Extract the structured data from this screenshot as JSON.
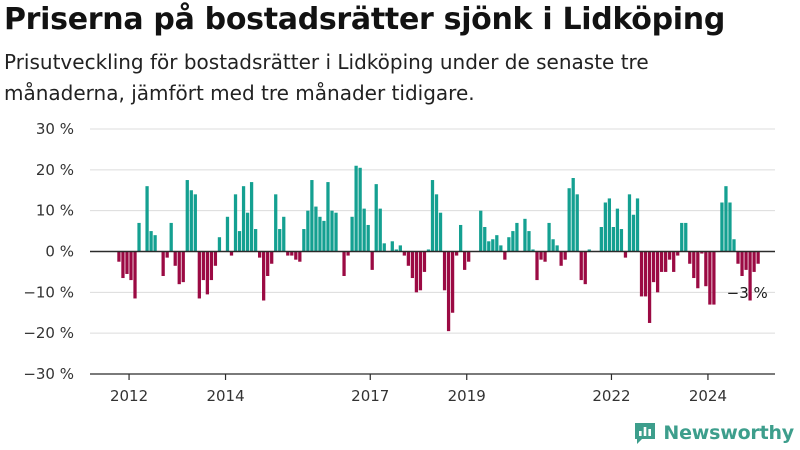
{
  "header": {
    "title": "Priserna på bostadsrätter sjönk i Lidköping",
    "subtitle": "Prisutveckling för bostadsrätter i Lidköping under de senaste tre månaderna, jämfört med tre månader tidigare."
  },
  "brand": {
    "name": "Newsworthy",
    "icon": "newsworthy-logo-icon",
    "color": "#3d9e8c"
  },
  "chart_data": {
    "type": "bar",
    "title": "",
    "xlabel": "",
    "ylabel": "",
    "ylim": [
      -30,
      30
    ],
    "yticks": [
      -30,
      -20,
      -10,
      0,
      10,
      20,
      30
    ],
    "ytick_labels": [
      "−30 %",
      "−20 %",
      "−10 %",
      "0 %",
      "10 %",
      "20 %",
      "30 %"
    ],
    "xticks": [
      {
        "label": "2012",
        "year": 2012.0
      },
      {
        "label": "2014",
        "year": 2014.0
      },
      {
        "label": "2017",
        "year": 2017.0
      },
      {
        "label": "2019",
        "year": 2019.0
      },
      {
        "label": "2022",
        "year": 2022.0
      },
      {
        "label": "2024",
        "year": 2024.0
      }
    ],
    "x_start": "2011-10",
    "frequency": "monthly",
    "grid": true,
    "legend": "none",
    "colors": {
      "positive": "#14a091",
      "negative": "#9b0a43"
    },
    "annotation": {
      "label": "−3 %",
      "value": -3
    },
    "values": [
      -2.5,
      -6.5,
      -5.5,
      -7,
      -11.5,
      7,
      0,
      16,
      5,
      4,
      0,
      -6,
      -1.5,
      7,
      -3.5,
      -8,
      -7.5,
      17.5,
      15,
      14,
      -11.5,
      -7,
      -10.5,
      -7,
      -3.5,
      3.5,
      0,
      8.5,
      -1,
      14,
      5,
      16,
      9.5,
      17,
      5.5,
      -1.5,
      -12,
      -6,
      -3,
      14,
      5.5,
      8.5,
      -1,
      -1,
      -2,
      -2.5,
      5.5,
      10,
      17.5,
      11,
      8.5,
      7.5,
      17,
      10,
      9.5,
      0,
      -6,
      -1,
      8.5,
      21,
      20.5,
      10.5,
      6.5,
      -4.5,
      16.5,
      10.5,
      2,
      0,
      2.5,
      0.5,
      1.5,
      -1,
      -3.5,
      -6.5,
      -10,
      -9.5,
      -5,
      0.5,
      17.5,
      14,
      9.5,
      -9.5,
      -19.5,
      -15,
      -1,
      6.5,
      -4.5,
      -2.5,
      0,
      0,
      10,
      6,
      2.5,
      3,
      4,
      1.5,
      -2,
      3.5,
      5,
      7,
      0,
      8,
      5,
      0.5,
      -7,
      -2,
      -2.5,
      7,
      3,
      1.5,
      -3.5,
      -2,
      15.5,
      18,
      14,
      -7,
      -8,
      0.5,
      0,
      0,
      6,
      12,
      13,
      6,
      10.5,
      5.5,
      -1.5,
      14,
      9,
      13,
      -11,
      -11,
      -17.5,
      -7.5,
      -10,
      -5,
      -5,
      -2,
      -5,
      -1,
      7,
      7,
      -3,
      -6.5,
      -9,
      -0.5,
      -8.5,
      -13,
      -13,
      0,
      12,
      16,
      12,
      3,
      -3,
      -6,
      -4.5,
      -12,
      -5,
      -3,
      0
    ]
  }
}
